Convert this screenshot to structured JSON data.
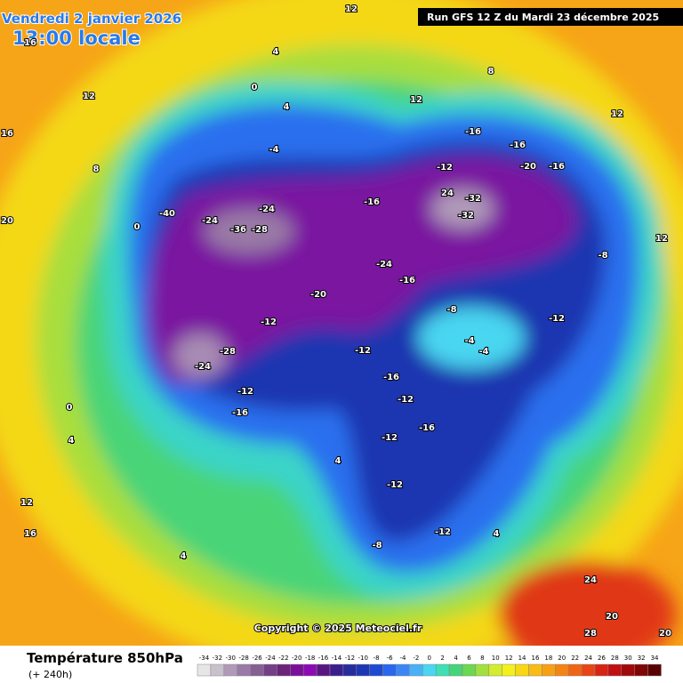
{
  "header": {
    "date": "Vendredi 2 janvier 2026",
    "time": "13:00 locale",
    "run": "Run GFS 12 Z du Mardi 23 décembre 2025"
  },
  "map": {
    "labels": [
      "12",
      "16",
      "8",
      "0",
      "-40",
      "-24",
      "-36",
      "-28",
      "-24",
      "-4",
      "4",
      "0",
      "4",
      "-16",
      "-16",
      "-20",
      "-16",
      "-12",
      "24",
      "-32",
      "-32",
      "-16",
      "-24",
      "-16",
      "-20",
      "-28",
      "-24",
      "-12",
      "-16",
      "-12",
      "-8",
      "-4",
      "-4",
      "-16",
      "-12",
      "-16",
      "-12",
      "-12",
      "-8",
      "-12",
      "0",
      "4",
      "12",
      "16",
      "4",
      "4",
      "12",
      "12",
      "12",
      "20",
      "4",
      "24",
      "28",
      "20",
      "16",
      "12",
      "8",
      "-12",
      "-12",
      "-8",
      "20"
    ],
    "copyright": "Copyright © 2025 Meteociel.fr"
  },
  "legend": {
    "title": "Température 850hPa",
    "subtitle": "(+ 240h)",
    "values": [
      -34,
      -32,
      -30,
      -28,
      -26,
      -24,
      -22,
      -20,
      -18,
      -16,
      -14,
      -12,
      -10,
      -8,
      -6,
      -4,
      -2,
      0,
      2,
      4,
      6,
      8,
      10,
      12,
      14,
      16,
      18,
      20,
      22,
      24,
      26,
      28,
      30,
      32,
      34
    ],
    "colors": [
      "#e6e6e6",
      "#c8c0cc",
      "#b09ab8",
      "#9a7aa6",
      "#866094",
      "#743f86",
      "#6a2478",
      "#7a109a",
      "#8c0ab4",
      "#5a1680",
      "#3a1e8c",
      "#262c9c",
      "#1c36b4",
      "#1e4ad2",
      "#2a66ee",
      "#3a86f6",
      "#4ab0f8",
      "#4ad6f0",
      "#3ee0b4",
      "#46d47a",
      "#6ad850",
      "#a2e040",
      "#d4ec2e",
      "#f4f01c",
      "#f8d814",
      "#f8bc14",
      "#f8a014",
      "#f48414",
      "#f06414",
      "#e84414",
      "#d82414",
      "#c01010",
      "#a00a0a",
      "#800606",
      "#5a0202"
    ]
  }
}
